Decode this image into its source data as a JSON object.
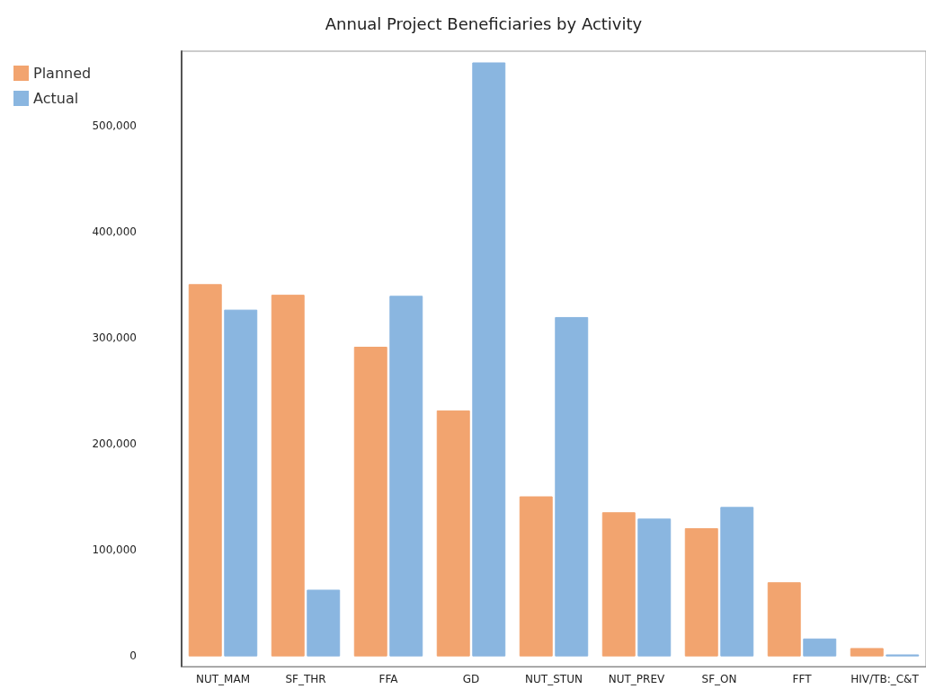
{
  "chart_data": {
    "type": "bar",
    "title": "Annual Project Beneficiaries by Activity",
    "categories": [
      "NUT_MAM",
      "SF_THR",
      "FFA",
      "GD",
      "NUT_STUN",
      "NUT_PREV",
      "SF_ON",
      "FFT",
      "HIV/TB:_C&T"
    ],
    "series": [
      {
        "name": "Planned",
        "color": "#f2a46f",
        "values": [
          350000,
          340000,
          291000,
          231000,
          150000,
          135000,
          120000,
          69000,
          7000
        ]
      },
      {
        "name": "Actual",
        "color": "#8ab6e0",
        "values": [
          326000,
          62000,
          339000,
          559000,
          319000,
          129000,
          140000,
          16000,
          1000
        ]
      }
    ],
    "ylim": [
      -10000,
      570000
    ],
    "yticks": [
      {
        "value": 0,
        "label": "0"
      },
      {
        "value": 100000,
        "label": "100,000"
      },
      {
        "value": 200000,
        "label": "200,000"
      },
      {
        "value": 300000,
        "label": "300,000"
      },
      {
        "value": 400000,
        "label": "400,000"
      },
      {
        "value": 500000,
        "label": "500,000"
      }
    ],
    "grid": false,
    "legend": "top left"
  }
}
